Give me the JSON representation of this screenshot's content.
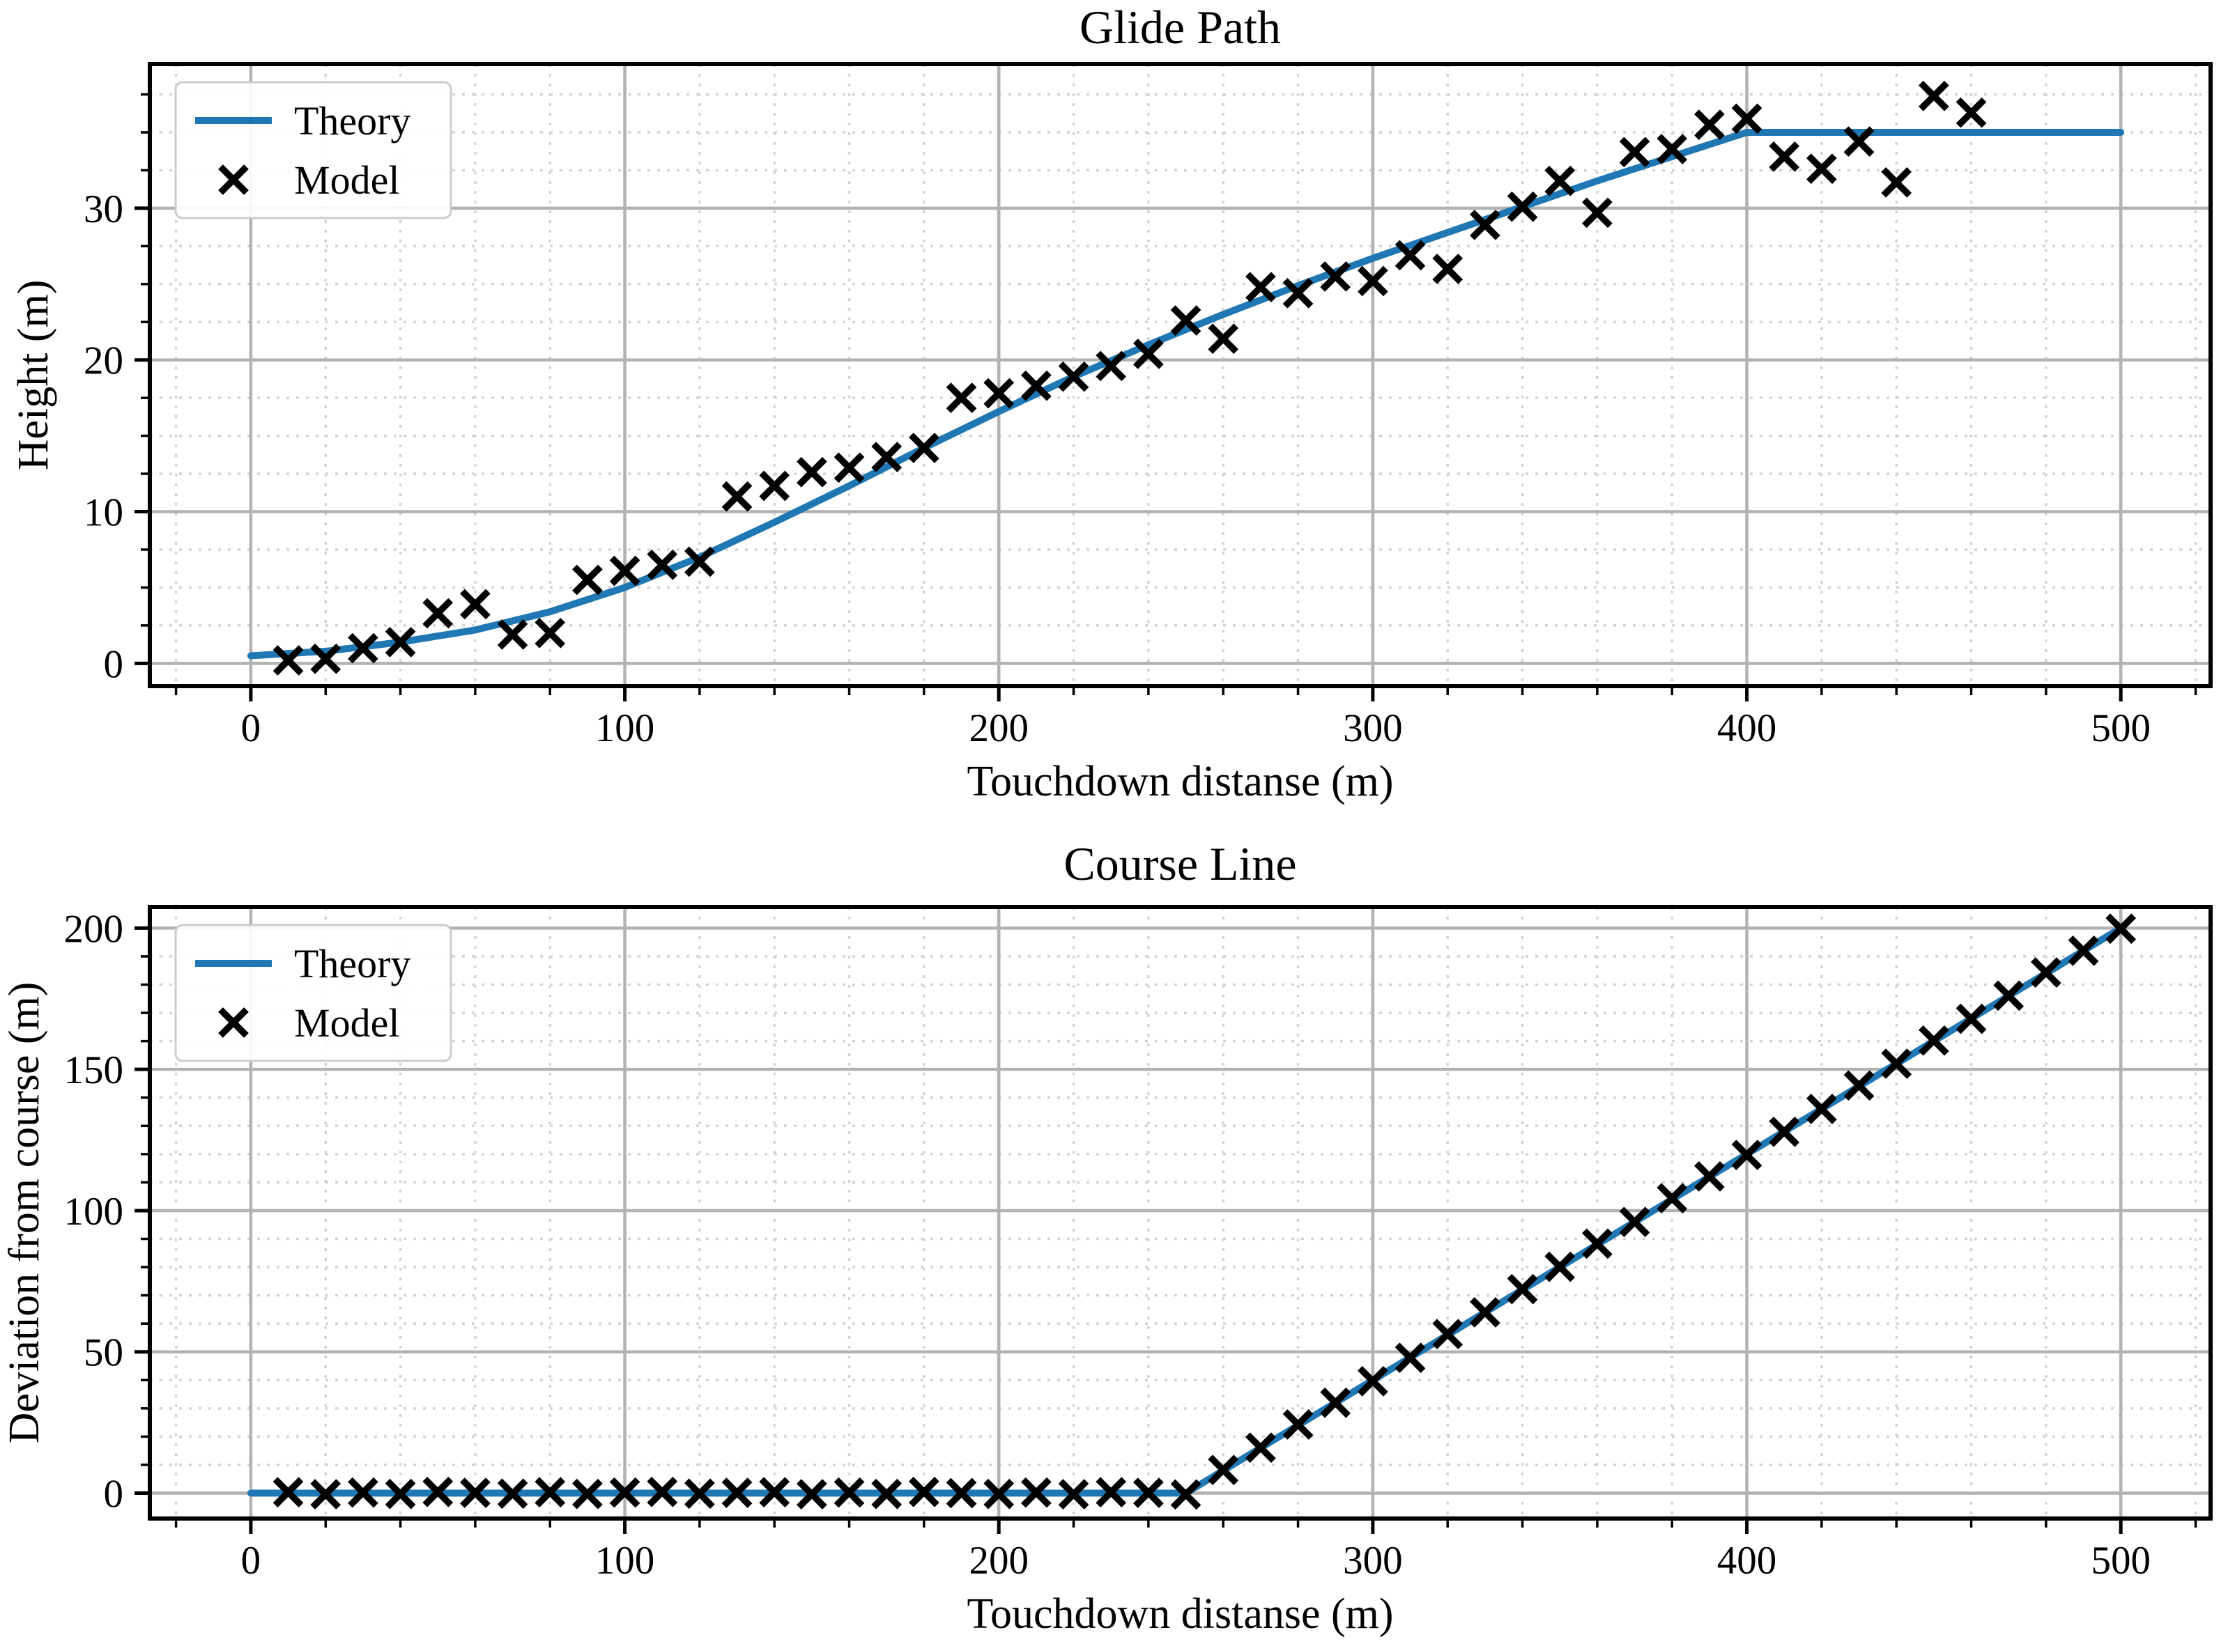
{
  "colors": {
    "theory_line": "#1f77b4",
    "model_marker": "#000000",
    "grid_major": "#b2b2b2",
    "grid_minor": "#d4d4d4",
    "spine": "#000000",
    "text": "#000000",
    "legend_bg": "#ffffff",
    "legend_border": "#cccccc",
    "background": "#ffffff"
  },
  "chart_data": [
    {
      "type": "line+scatter",
      "title": "Glide Path",
      "xlabel": "Touchdown distanse (m)",
      "ylabel": "Height (m)",
      "xlim": [
        -27,
        524
      ],
      "ylim": [
        -1.5,
        39.5
      ],
      "x_major_ticks": [
        0,
        100,
        200,
        300,
        400,
        500
      ],
      "x_minor_step": 20,
      "y_major_ticks": [
        0,
        10,
        20,
        30
      ],
      "y_minor_step": 2.5,
      "grid": true,
      "legend_position": "upper-left",
      "legend": [
        "Theory",
        "Model"
      ],
      "series": [
        {
          "name": "Theory",
          "type": "line",
          "x": [
            0,
            20,
            40,
            60,
            80,
            100,
            120,
            140,
            160,
            180,
            200,
            220,
            240,
            260,
            280,
            300,
            320,
            340,
            360,
            380,
            400,
            500
          ],
          "y": [
            0.5,
            0.8,
            1.4,
            2.2,
            3.4,
            5.0,
            7.0,
            9.3,
            11.7,
            14.2,
            16.6,
            18.9,
            21.0,
            23.0,
            24.9,
            26.7,
            28.4,
            30.1,
            31.8,
            33.4,
            35.0,
            35.0
          ]
        },
        {
          "name": "Model",
          "type": "scatter",
          "marker": "x",
          "x": [
            10,
            20,
            30,
            40,
            50,
            60,
            70,
            80,
            90,
            100,
            110,
            120,
            130,
            140,
            150,
            160,
            170,
            180,
            190,
            200,
            210,
            220,
            230,
            240,
            250,
            260,
            270,
            280,
            290,
            300,
            310,
            320,
            330,
            340,
            350,
            360,
            370,
            380,
            390,
            400,
            410,
            420,
            430,
            440,
            450,
            460
          ],
          "y": [
            0.2,
            0.3,
            1.0,
            1.4,
            3.3,
            3.9,
            1.9,
            2.0,
            5.5,
            6.1,
            6.5,
            6.7,
            11.0,
            11.7,
            12.6,
            12.9,
            13.6,
            14.2,
            17.5,
            17.8,
            18.3,
            18.9,
            19.6,
            20.4,
            22.6,
            21.4,
            24.8,
            24.4,
            25.5,
            25.2,
            26.9,
            26.0,
            28.9,
            30.1,
            31.8,
            29.7,
            33.7,
            33.9,
            35.5,
            35.9,
            33.4,
            32.6,
            34.4,
            31.7,
            37.4,
            36.3
          ]
        }
      ]
    },
    {
      "type": "line+scatter",
      "title": "Course Line",
      "xlabel": "Touchdown distanse (m)",
      "ylabel": "Deviation from course (m)",
      "xlim": [
        -27,
        524
      ],
      "ylim": [
        -9,
        207.5
      ],
      "x_major_ticks": [
        0,
        100,
        200,
        300,
        400,
        500
      ],
      "x_minor_step": 20,
      "y_major_ticks": [
        0,
        50,
        100,
        150,
        200
      ],
      "y_minor_step": 10,
      "grid": true,
      "legend_position": "upper-left",
      "legend": [
        "Theory",
        "Model"
      ],
      "series": [
        {
          "name": "Theory",
          "type": "line",
          "x": [
            0,
            250,
            300,
            350,
            400,
            450,
            500
          ],
          "y": [
            0,
            0,
            40,
            80,
            120,
            160,
            200
          ]
        },
        {
          "name": "Model",
          "type": "scatter",
          "marker": "x",
          "x": [
            10,
            20,
            30,
            40,
            50,
            60,
            70,
            80,
            90,
            100,
            110,
            120,
            130,
            140,
            150,
            160,
            170,
            180,
            190,
            200,
            210,
            220,
            230,
            240,
            250,
            260,
            270,
            280,
            290,
            300,
            310,
            320,
            330,
            340,
            350,
            360,
            370,
            380,
            390,
            400,
            410,
            420,
            430,
            440,
            450,
            460,
            470,
            480,
            490,
            500
          ],
          "y": [
            0.3,
            -0.4,
            0.2,
            -0.3,
            0.4,
            0.1,
            -0.2,
            0.3,
            -0.3,
            0.2,
            0.4,
            -0.2,
            0.1,
            0.3,
            -0.4,
            0.2,
            -0.3,
            0.4,
            0.0,
            -0.3,
            0.2,
            -0.4,
            0.3,
            0.1,
            -0.5,
            8.2,
            16.1,
            24.3,
            32.0,
            39.6,
            47.9,
            56.3,
            64.0,
            72.2,
            80.1,
            88.3,
            96.0,
            104.4,
            112.1,
            119.7,
            127.9,
            136.0,
            144.3,
            152.0,
            160.2,
            167.9,
            176.1,
            184.3,
            192.0,
            199.8
          ]
        }
      ]
    }
  ]
}
